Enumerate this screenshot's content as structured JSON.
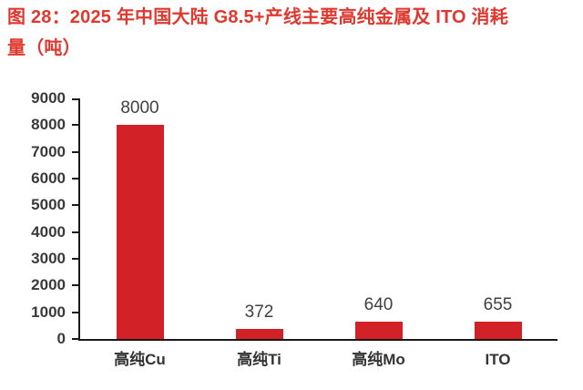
{
  "title": {
    "line1": "图 28：2025 年中国大陆 G8.5+产线主要高纯金属及 ITO 消耗",
    "line2": "量（吨）",
    "color": "#E0382E"
  },
  "chart_data": {
    "type": "bar",
    "title": "2025 年中国大陆 G8.5+产线主要高纯金属及 ITO 消耗量（吨）",
    "categories": [
      "高纯Cu",
      "高纯Ti",
      "高纯Mo",
      "ITO"
    ],
    "values": [
      8000,
      372,
      640,
      655
    ],
    "value_labels": [
      "8000",
      "372",
      "640",
      "655"
    ],
    "xlabel": "",
    "ylabel": "",
    "ylim": [
      0,
      9000
    ],
    "ytick_step": 1000,
    "yticks": [
      0,
      1000,
      2000,
      3000,
      4000,
      5000,
      6000,
      7000,
      8000,
      9000
    ],
    "grid": false,
    "legend": null,
    "bar_color": "#D32128",
    "axis_color": "#1a1a1a",
    "label_color": "#404040"
  }
}
